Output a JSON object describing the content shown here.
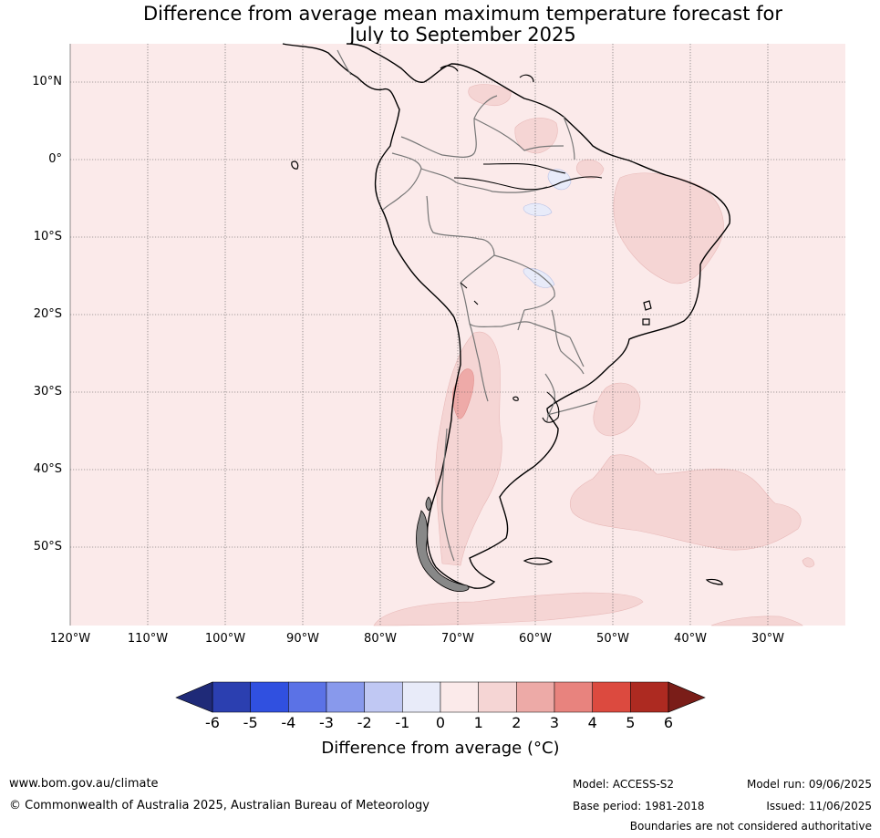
{
  "title_line1": "Difference from average mean maximum temperature forecast for",
  "title_line2": "July to September 2025",
  "lat_labels": [
    "10°N",
    "0°",
    "10°S",
    "20°S",
    "30°S",
    "40°S",
    "50°S"
  ],
  "lon_labels": [
    "120°W",
    "110°W",
    "100°W",
    "90°W",
    "80°W",
    "70°W",
    "60°W",
    "50°W",
    "40°W",
    "30°W"
  ],
  "colorbar": {
    "ticks": [
      "-6",
      "-5",
      "-4",
      "-3",
      "-2",
      "-1",
      "0",
      "1",
      "2",
      "3",
      "4",
      "5",
      "6"
    ],
    "label": "Difference from average (°C)",
    "colors": [
      "#1f2a78",
      "#2b3fb0",
      "#3050e0",
      "#5b72e6",
      "#8899ec",
      "#c0c8f3",
      "#e8ebf9",
      "#fbeaea",
      "#f5d5d4",
      "#edaaa7",
      "#e8837e",
      "#dc4a3f",
      "#ad2a21",
      "#7a1d18"
    ]
  },
  "map_colors": {
    "background": "#fbeaea",
    "warm_1_2": "#f5d5d4",
    "warm_2_3": "#eeaaa8",
    "cool_0_-1": "#e8ebf9"
  },
  "footer": {
    "website": "www.bom.gov.au/climate",
    "copyright": "© Commonwealth of Australia 2025, Australian Bureau of Meteorology",
    "model": "Model: ACCESS-S2",
    "base_period": "Base period: 1981-2018",
    "model_run": "Model run: 09/06/2025",
    "issued": "Issued: 11/06/2025",
    "disclaimer": "Boundaries are not considered authoritative"
  }
}
